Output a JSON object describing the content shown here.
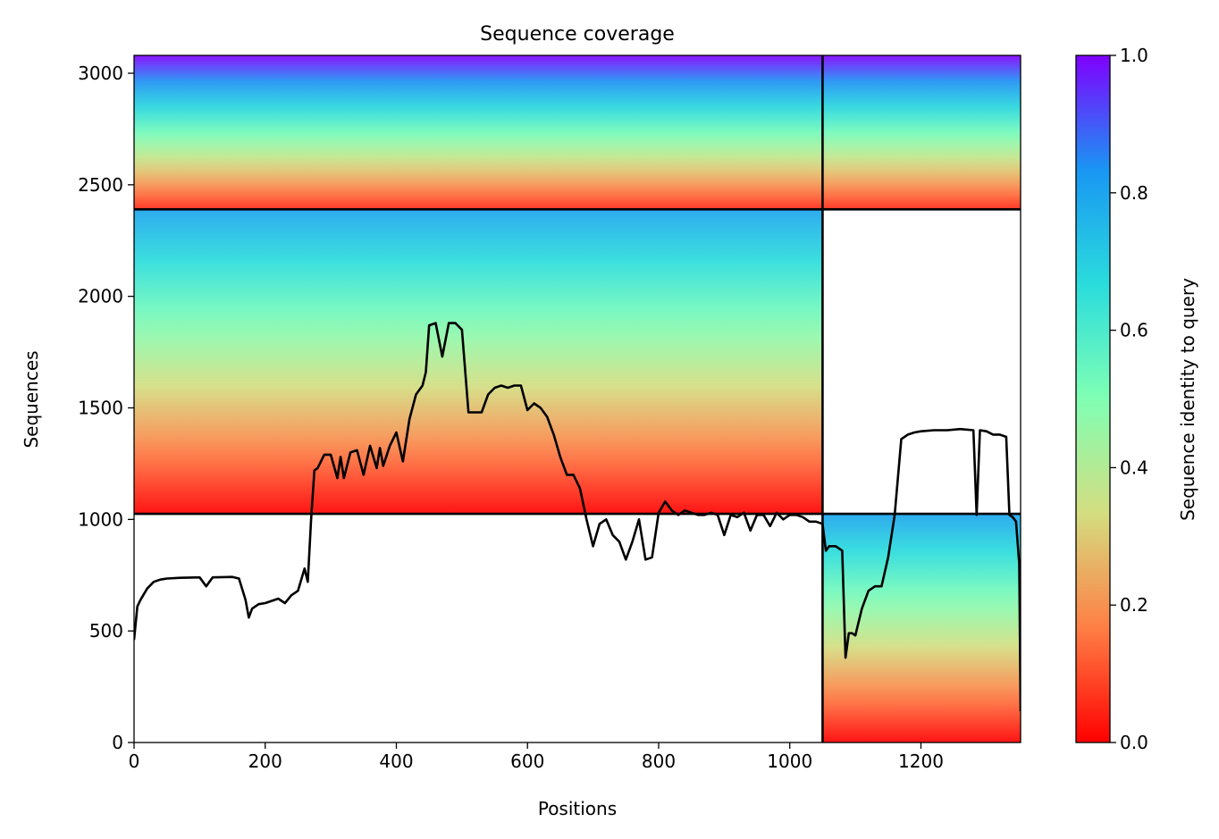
{
  "chart_data": {
    "type": "heatmap",
    "title": "Sequence coverage",
    "xlabel": "Positions",
    "ylabel": "Sequences",
    "xlim": [
      0,
      1352
    ],
    "ylim": [
      0,
      3080
    ],
    "x_ticks": [
      0,
      200,
      400,
      600,
      800,
      1000,
      1200
    ],
    "y_ticks": [
      0,
      500,
      1000,
      1500,
      2000,
      2500,
      3000
    ],
    "colorbar": {
      "label": "Sequence identity to query",
      "range": [
        0,
        1
      ],
      "ticks": [
        "0.0",
        "0.2",
        "0.4",
        "0.6",
        "0.8",
        "1.0"
      ],
      "colormap": "rainbow_r",
      "stops": [
        "#ff0000",
        "#ff7f45",
        "#d4dd80",
        "#80ffb4",
        "#2adcdc",
        "#1996f3",
        "#8000ff"
      ]
    },
    "chain_boundaries": {
      "positions": [
        1050
      ],
      "sequences": [
        1025,
        2390
      ]
    },
    "blocks": [
      {
        "name": "chain-1-only",
        "x": [
          0,
          1050
        ],
        "seq": [
          1025,
          2390
        ],
        "identity_top": 0.8,
        "identity_bottom": 0.0
      },
      {
        "name": "chain-2-only",
        "x": [
          1050,
          1352
        ],
        "seq": [
          0,
          1025
        ],
        "identity_top": 0.8,
        "identity_bottom": 0.0
      },
      {
        "name": "paired",
        "x": [
          0,
          1352
        ],
        "seq": [
          2390,
          3080
        ],
        "identity_top": 1.0,
        "identity_bottom": 0.05
      }
    ],
    "coverage_line": {
      "color": "#000000",
      "x": [
        0,
        5,
        10,
        20,
        30,
        40,
        50,
        70,
        100,
        110,
        120,
        150,
        160,
        170,
        175,
        180,
        190,
        200,
        220,
        230,
        240,
        250,
        260,
        265,
        270,
        275,
        280,
        290,
        300,
        310,
        315,
        320,
        330,
        340,
        350,
        360,
        370,
        375,
        380,
        390,
        400,
        410,
        420,
        430,
        440,
        445,
        450,
        460,
        470,
        480,
        490,
        500,
        510,
        520,
        530,
        540,
        550,
        560,
        570,
        580,
        590,
        600,
        610,
        620,
        630,
        640,
        650,
        660,
        670,
        680,
        690,
        700,
        710,
        720,
        730,
        740,
        750,
        760,
        770,
        780,
        790,
        800,
        810,
        820,
        830,
        840,
        850,
        860,
        870,
        880,
        890,
        900,
        910,
        920,
        930,
        940,
        950,
        960,
        970,
        980,
        990,
        1000,
        1010,
        1020,
        1030,
        1040,
        1050,
        1055,
        1060,
        1070,
        1080,
        1085,
        1090,
        1095,
        1100,
        1110,
        1120,
        1130,
        1140,
        1150,
        1160,
        1170,
        1180,
        1190,
        1200,
        1220,
        1240,
        1260,
        1280,
        1285,
        1290,
        1300,
        1310,
        1320,
        1330,
        1335,
        1340,
        1345,
        1350,
        1352
      ],
      "y": [
        460,
        610,
        640,
        690,
        720,
        730,
        735,
        738,
        740,
        700,
        740,
        742,
        735,
        640,
        560,
        600,
        620,
        625,
        645,
        625,
        660,
        680,
        780,
        720,
        1000,
        1220,
        1230,
        1290,
        1290,
        1185,
        1280,
        1185,
        1300,
        1310,
        1200,
        1330,
        1230,
        1320,
        1240,
        1330,
        1390,
        1260,
        1450,
        1560,
        1600,
        1660,
        1870,
        1880,
        1730,
        1880,
        1880,
        1850,
        1480,
        1480,
        1480,
        1560,
        1590,
        1600,
        1590,
        1600,
        1600,
        1490,
        1520,
        1500,
        1460,
        1380,
        1280,
        1200,
        1200,
        1140,
        1000,
        880,
        980,
        1000,
        930,
        900,
        820,
        900,
        1000,
        820,
        830,
        1030,
        1080,
        1040,
        1020,
        1040,
        1030,
        1020,
        1020,
        1030,
        1020,
        930,
        1020,
        1010,
        1030,
        950,
        1020,
        1020,
        970,
        1030,
        1000,
        1020,
        1020,
        1010,
        990,
        990,
        980,
        860,
        880,
        880,
        860,
        380,
        490,
        490,
        480,
        600,
        680,
        700,
        700,
        830,
        1020,
        1360,
        1380,
        1390,
        1395,
        1400,
        1400,
        1405,
        1400,
        1020,
        1400,
        1395,
        1380,
        1380,
        1370,
        1020,
        1010,
        990,
        800,
        140
      ]
    }
  }
}
